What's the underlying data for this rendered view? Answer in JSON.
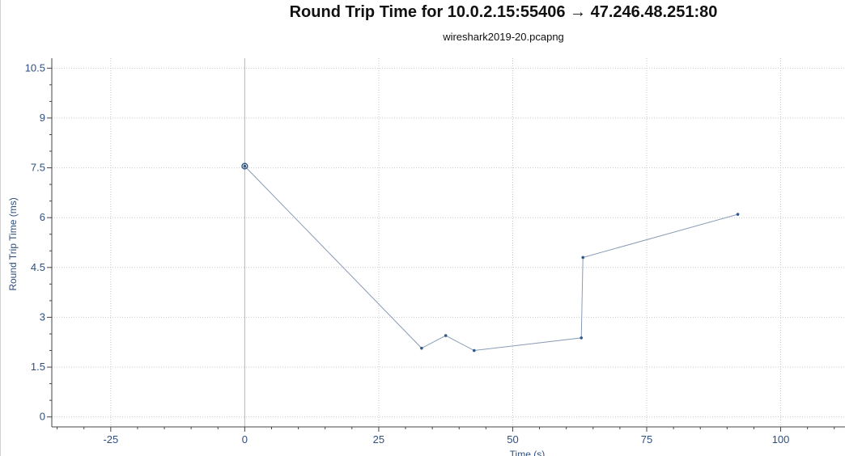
{
  "chart_data": {
    "type": "line",
    "title": "Round Trip Time for 10.0.2.15:55406 → 47.246.48.251:80",
    "subtitle": "wireshark2019-20.pcapng",
    "xlabel": "Time (s)",
    "ylabel": "Round Trip Time (ms)",
    "xlim": [
      -36,
      112
    ],
    "ylim": [
      -0.3,
      10.8
    ],
    "xticks": [
      -25,
      0,
      25,
      50,
      75,
      100
    ],
    "xtick_labels": [
      "-25",
      "0",
      "25",
      "50",
      "75",
      "100"
    ],
    "yticks": [
      0,
      1.5,
      3,
      4.5,
      6,
      7.5,
      9,
      10.5
    ],
    "ytick_labels": [
      "0",
      "1.5",
      "3",
      "4.5",
      "6",
      "7.5",
      "9",
      "10.5"
    ],
    "grid": true,
    "series": [
      {
        "x": [
          0,
          33,
          37.5,
          42.8,
          62.8,
          63.1,
          92
        ],
        "y": [
          7.55,
          2.07,
          2.45,
          2.0,
          2.38,
          4.8,
          6.1
        ]
      }
    ],
    "selected_point_index": 0,
    "colors": {
      "line": "#8a9bb5",
      "marker": "#2f5a8c",
      "axis_text": "#2f4f7f",
      "grid": "#c8c8c8",
      "cursor": "#b8b8b8"
    }
  }
}
